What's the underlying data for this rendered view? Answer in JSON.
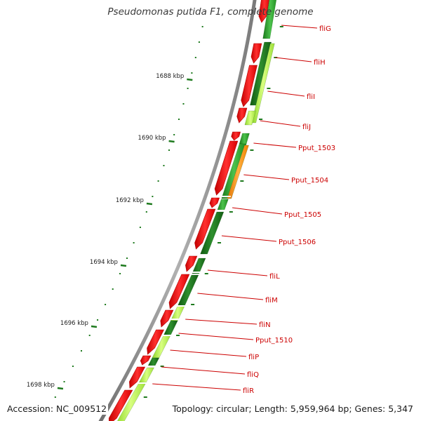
{
  "title": "Pseudomonas putida F1, complete genome",
  "footer": {
    "accession": "Accession: NC_009512",
    "topology": "Topology: circular; Length: 5,959,964 bp; Genes: 5,347"
  },
  "colors": {
    "background": "#ffffff",
    "backbone": "#8c8c8c",
    "forward_strand_gene": "#ff1a1a",
    "reverse_strand_gene": "#2ea02e",
    "reverse_light": "#b8ff50",
    "orange_gene": "#ff9a1a",
    "gene_label": "#cc0000",
    "tick": "#1e7a1e"
  },
  "scale": {
    "unit": "kbp",
    "labels": [
      "1688 kbp",
      "1690 kbp",
      "1692 kbp",
      "1694 kbp",
      "1696 kbp",
      "1698 kbp"
    ]
  },
  "genes": [
    "fliG",
    "fliH",
    "fliI",
    "fliJ",
    "Pput_1503",
    "Pput_1504",
    "Pput_1505",
    "Pput_1506",
    "fliL",
    "fliM",
    "fliN",
    "Pput_1510",
    "fliP",
    "fliQ",
    "fliR"
  ]
}
